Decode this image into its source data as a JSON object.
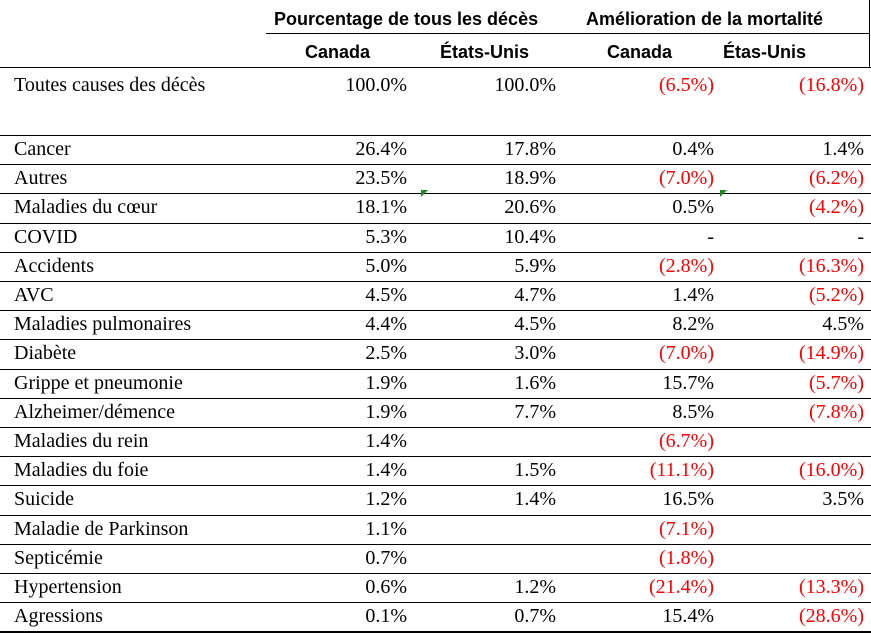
{
  "headers": {
    "group_pct": "Pourcentage de tous les décès",
    "group_mort": "Amélioration de la mortalité",
    "col_canada_pct": "Canada",
    "col_us_pct": "États-Unis",
    "col_canada_mort": "Canada",
    "col_us_mort": "Étas-Unis"
  },
  "total_row": {
    "label": "Toutes causes des décès",
    "canada_pct": "100.0%",
    "us_pct": "100.0%",
    "canada_mort": "(6.5%)",
    "us_mort": "(16.8%)"
  },
  "rows": [
    {
      "label": "Cancer",
      "canada_pct": "26.4%",
      "us_pct": "17.8%",
      "canada_mort": "0.4%",
      "us_mort": "1.4%"
    },
    {
      "label": "Autres",
      "canada_pct": "23.5%",
      "us_pct": "18.9%",
      "canada_mort": "(7.0%)",
      "us_mort": "(6.2%)"
    },
    {
      "label": "Maladies du cœur",
      "canada_pct": "18.1%",
      "us_pct": "20.6%",
      "canada_mort": "0.5%",
      "us_mort": "(4.2%)"
    },
    {
      "label": "COVID",
      "canada_pct": "5.3%",
      "us_pct": "10.4%",
      "canada_mort": "-",
      "us_mort": "-"
    },
    {
      "label": "Accidents",
      "canada_pct": "5.0%",
      "us_pct": "5.9%",
      "canada_mort": "(2.8%)",
      "us_mort": "(16.3%)"
    },
    {
      "label": "AVC",
      "canada_pct": "4.5%",
      "us_pct": "4.7%",
      "canada_mort": "1.4%",
      "us_mort": "(5.2%)"
    },
    {
      "label": "Maladies pulmonaires",
      "canada_pct": "4.4%",
      "us_pct": "4.5%",
      "canada_mort": "8.2%",
      "us_mort": "4.5%"
    },
    {
      "label": "Diabète",
      "canada_pct": "2.5%",
      "us_pct": "3.0%",
      "canada_mort": "(7.0%)",
      "us_mort": "(14.9%)"
    },
    {
      "label": "Grippe et pneumonie",
      "canada_pct": "1.9%",
      "us_pct": "1.6%",
      "canada_mort": "15.7%",
      "us_mort": "(5.7%)"
    },
    {
      "label": "Alzheimer/démence",
      "canada_pct": "1.9%",
      "us_pct": "7.7%",
      "canada_mort": "8.5%",
      "us_mort": "(7.8%)"
    },
    {
      "label": "Maladies du rein",
      "canada_pct": "1.4%",
      "us_pct": "",
      "canada_mort": "(6.7%)",
      "us_mort": ""
    },
    {
      "label": "Maladies du foie",
      "canada_pct": "1.4%",
      "us_pct": "1.5%",
      "canada_mort": "(11.1%)",
      "us_mort": "(16.0%)"
    },
    {
      "label": "Suicide",
      "canada_pct": "1.2%",
      "us_pct": "1.4%",
      "canada_mort": "16.5%",
      "us_mort": "3.5%"
    },
    {
      "label": "Maladie de Parkinson",
      "canada_pct": "1.1%",
      "us_pct": "",
      "canada_mort": "(7.1%)",
      "us_mort": ""
    },
    {
      "label": "Septicémie",
      "canada_pct": "0.7%",
      "us_pct": "",
      "canada_mort": "(1.8%)",
      "us_mort": ""
    },
    {
      "label": "Hypertension",
      "canada_pct": "0.6%",
      "us_pct": "1.2%",
      "canada_mort": "(21.4%)",
      "us_mort": "(13.3%)"
    },
    {
      "label": "Agressions",
      "canada_pct": "0.1%",
      "us_pct": "0.7%",
      "canada_mort": "15.4%",
      "us_mort": "(28.6%)"
    }
  ],
  "colors": {
    "negative_text": "#ff0000",
    "comment_marker": "#1f8a1f"
  }
}
